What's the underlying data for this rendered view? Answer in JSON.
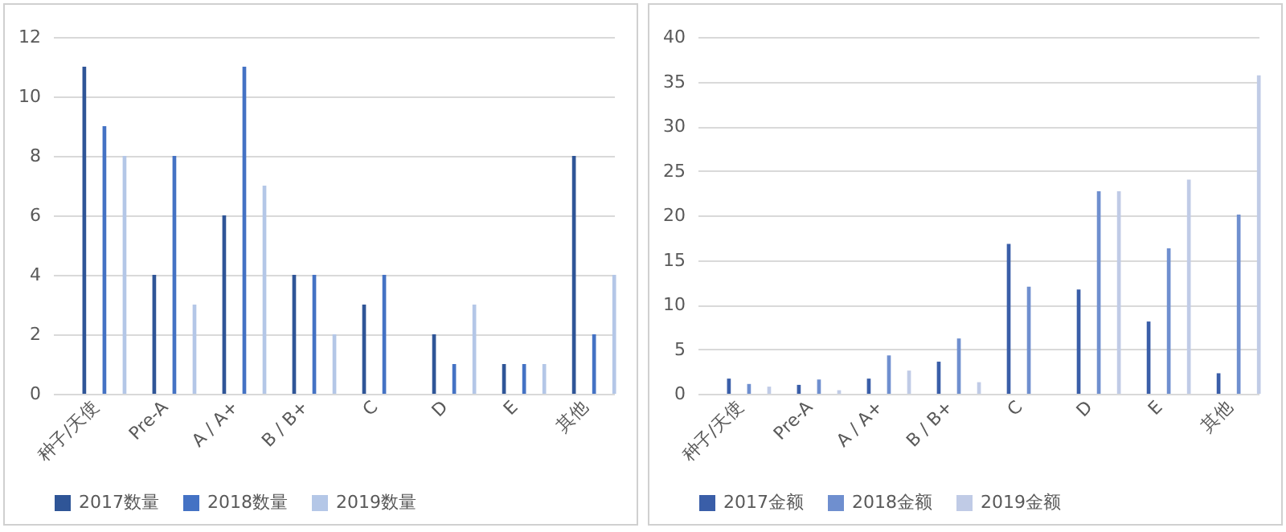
{
  "chart_data": [
    {
      "type": "bar",
      "categories": [
        "种子/天使",
        "Pre-A",
        "A / A+",
        "B / B+",
        "C",
        "D",
        "E",
        "其他"
      ],
      "series": [
        {
          "name": "2017数量",
          "color": "#2f5597",
          "values": [
            11,
            4,
            6,
            4,
            3,
            2,
            1,
            8
          ]
        },
        {
          "name": "2018数量",
          "color": "#4472c4",
          "values": [
            9,
            8,
            11,
            4,
            4,
            1,
            1,
            2
          ]
        },
        {
          "name": "2019数量",
          "color": "#b4c7e7",
          "values": [
            8,
            3,
            7,
            2,
            0,
            3,
            1,
            4
          ]
        }
      ],
      "ylim": [
        0,
        12
      ],
      "yticks": [
        0,
        2,
        4,
        6,
        8,
        10,
        12
      ],
      "grid": "y",
      "legend": "bottom"
    },
    {
      "type": "bar",
      "categories": [
        "种子/天使",
        "Pre-A",
        "A / A+",
        "B / B+",
        "C",
        "D",
        "E",
        "其他"
      ],
      "series": [
        {
          "name": "2017金额",
          "color": "#3a5ea8",
          "values": [
            1.7,
            1.0,
            1.7,
            3.6,
            16.8,
            11.7,
            8.1,
            2.3
          ]
        },
        {
          "name": "2018金额",
          "color": "#6f8fcf",
          "values": [
            1.1,
            1.6,
            4.3,
            6.2,
            12.0,
            22.7,
            16.3,
            20.1
          ]
        },
        {
          "name": "2019金额",
          "color": "#c0cbe6",
          "values": [
            0.8,
            0.4,
            2.6,
            1.3,
            0,
            22.7,
            24.0,
            35.7
          ]
        }
      ],
      "ylim": [
        0,
        40
      ],
      "yticks": [
        0,
        5,
        10,
        15,
        20,
        25,
        30,
        35,
        40
      ],
      "grid": "y",
      "legend": "bottom"
    }
  ]
}
